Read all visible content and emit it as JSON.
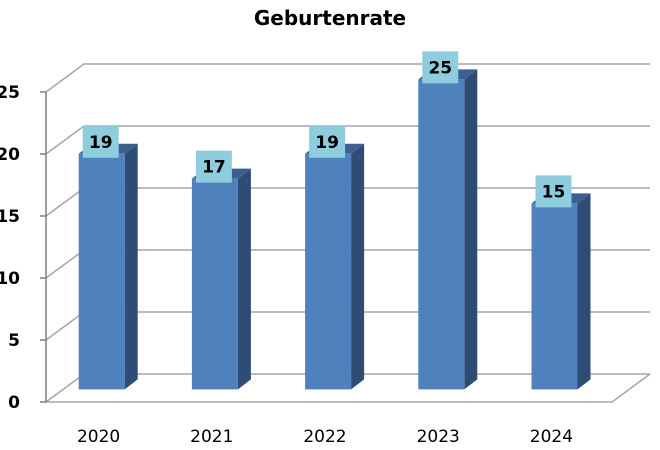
{
  "chart_data": {
    "type": "bar",
    "title": "Geburtenrate",
    "categories": [
      "2020",
      "2021",
      "2022",
      "2023",
      "2024"
    ],
    "values": [
      19,
      17,
      19,
      25,
      15
    ],
    "ylim": [
      0,
      25
    ],
    "yticks": [
      "0",
      "5",
      "10",
      "15",
      "20",
      "25"
    ],
    "grid": true,
    "legend": "none",
    "data_labels": true,
    "style": "3d",
    "colors": {
      "bar_front": "#4F81BD",
      "bar_side": "#2E4C74",
      "bar_top": "#3B5F91",
      "label_box": "#8ECDDE",
      "grid": "#A6A6A6"
    }
  }
}
